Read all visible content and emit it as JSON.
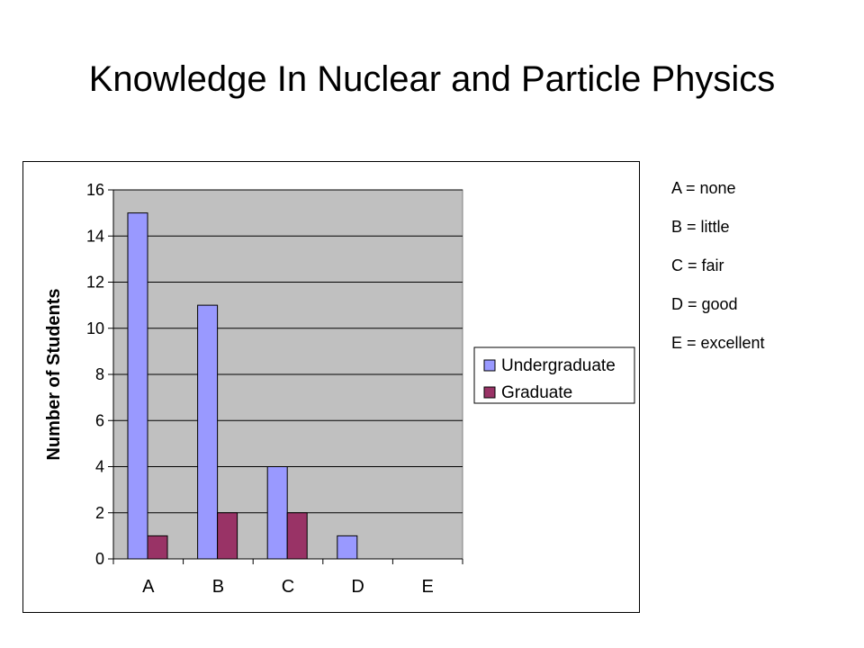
{
  "slide": {
    "title": "Knowledge In Nuclear and Particle Physics"
  },
  "key": [
    "A = none",
    "B = little",
    "C = fair",
    "D = good",
    "E = excellent"
  ],
  "chart_data": {
    "type": "bar",
    "title": "",
    "xlabel": "",
    "ylabel": "Number of Students",
    "categories": [
      "A",
      "B",
      "C",
      "D",
      "E"
    ],
    "series": [
      {
        "name": "Undergraduate",
        "values": [
          15,
          11,
          4,
          1,
          0
        ],
        "color": "#9999FF"
      },
      {
        "name": "Graduate",
        "values": [
          1,
          2,
          2,
          0,
          0
        ],
        "color": "#993366"
      }
    ],
    "ylim": [
      0,
      16
    ],
    "yticks": [
      0,
      2,
      4,
      6,
      8,
      10,
      12,
      14,
      16
    ],
    "plot_background": "#C0C0C0",
    "grid": true,
    "legend_position": "right"
  }
}
